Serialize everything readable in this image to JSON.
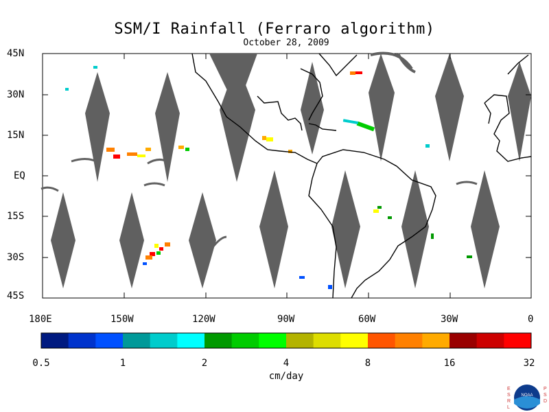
{
  "title": "SSM/I Rainfall (Ferraro algorithm)",
  "date": "October 28, 2009",
  "lat_labels": [
    "45N",
    "30N",
    "15N",
    "EQ",
    "15S",
    "30S",
    "45S"
  ],
  "lon_labels": [
    "180E",
    "150W",
    "120W",
    "90W",
    "60W",
    "30W",
    "0"
  ],
  "colorbar": {
    "colors": [
      "#001a80",
      "#0033cc",
      "#0050ff",
      "#009999",
      "#00cccc",
      "#00ffff",
      "#009900",
      "#00cc00",
      "#00ff00",
      "#b3b300",
      "#dddd00",
      "#ffff00",
      "#ff5500",
      "#ff8000",
      "#ffaa00",
      "#990000",
      "#cc0000",
      "#ff0000"
    ],
    "labels": [
      "0.5",
      "1",
      "2",
      "4",
      "8",
      "16",
      "32"
    ]
  },
  "units": "cm/day",
  "logo": {
    "left_text": "ESRL",
    "right_text": "PSD",
    "center_text": "NOAA"
  }
}
